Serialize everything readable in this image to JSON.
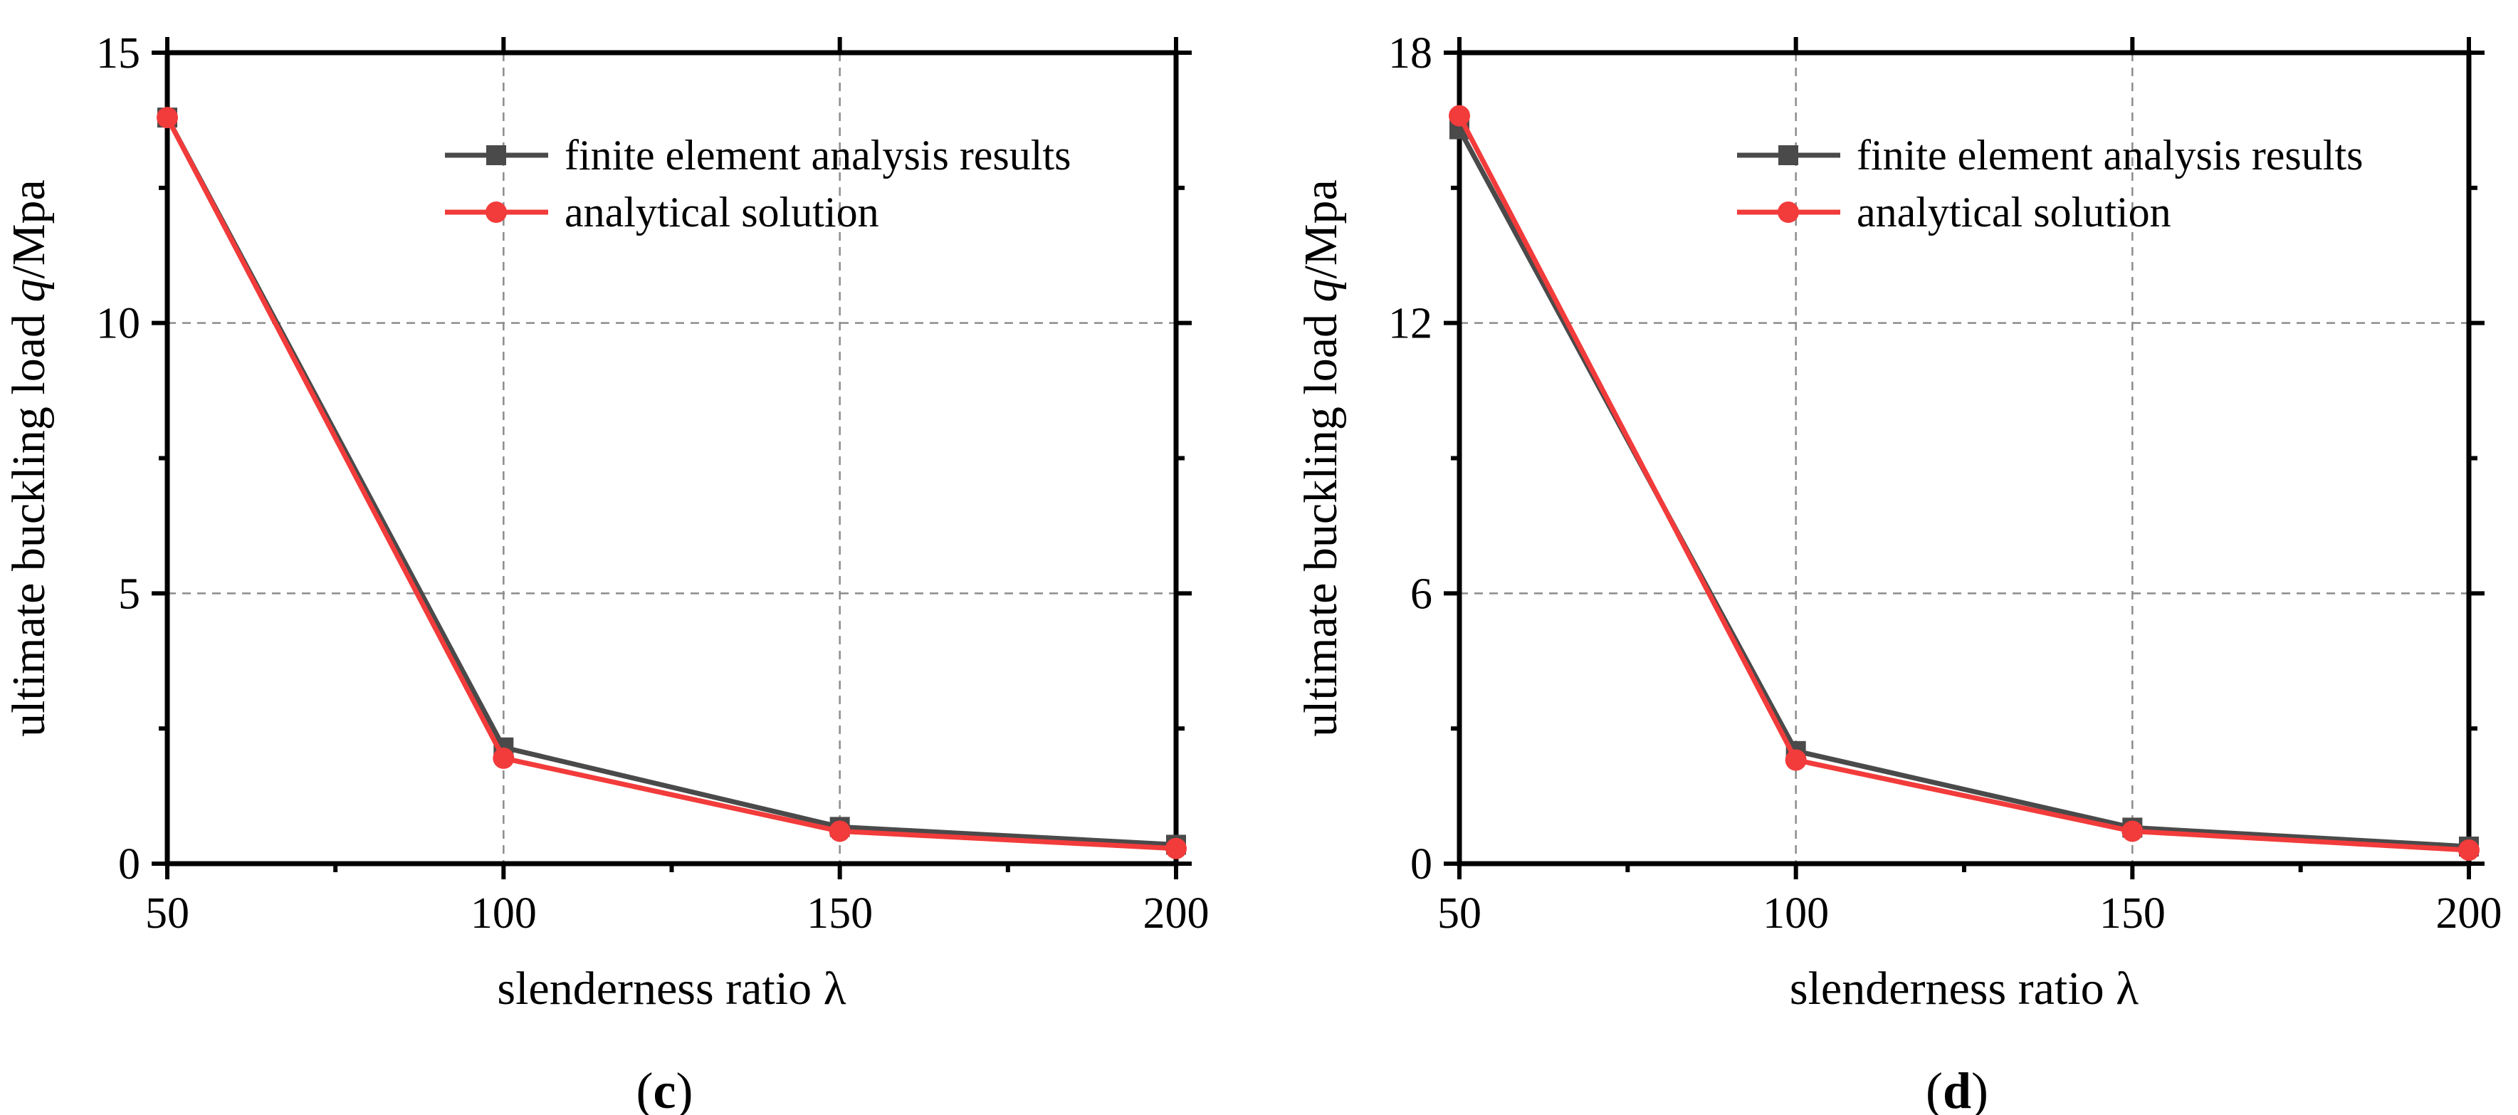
{
  "chart_data": [
    {
      "type": "line",
      "panel_label": "c",
      "title": "",
      "xlabel": "slenderness ratio λ",
      "ylabel_prefix": "ultimate buckling load ",
      "ylabel_var": "q",
      "ylabel_suffix": "/Mpa",
      "xlim": [
        50,
        200
      ],
      "ylim": [
        0,
        15
      ],
      "xticks": [
        50,
        100,
        150,
        200
      ],
      "yticks": [
        0,
        5,
        10,
        15
      ],
      "grid": true,
      "legend_position": "top-right",
      "x": [
        50,
        100,
        150,
        200
      ],
      "series": [
        {
          "name": "finite element analysis results",
          "marker": "square",
          "color": "#4a4a4a",
          "values": [
            13.8,
            2.15,
            0.68,
            0.35
          ]
        },
        {
          "name": "analytical solution",
          "marker": "circle",
          "color": "#f23b3b",
          "values": [
            13.8,
            1.95,
            0.6,
            0.28
          ]
        }
      ]
    },
    {
      "type": "line",
      "panel_label": "d",
      "title": "",
      "xlabel": "slenderness ratio λ",
      "ylabel_prefix": "ultimate buckling load ",
      "ylabel_var": "q",
      "ylabel_suffix": "/Mpa",
      "xlim": [
        50,
        200
      ],
      "ylim": [
        0,
        18
      ],
      "xticks": [
        50,
        100,
        150,
        200
      ],
      "yticks": [
        0,
        6,
        12,
        18
      ],
      "grid": true,
      "legend_position": "top-right",
      "x": [
        50,
        100,
        150,
        200
      ],
      "series": [
        {
          "name": "finite element analysis results",
          "marker": "square",
          "color": "#4a4a4a",
          "values": [
            16.3,
            2.5,
            0.8,
            0.38
          ]
        },
        {
          "name": "analytical solution",
          "marker": "circle",
          "color": "#f23b3b",
          "values": [
            16.6,
            2.3,
            0.72,
            0.3
          ]
        }
      ]
    }
  ]
}
